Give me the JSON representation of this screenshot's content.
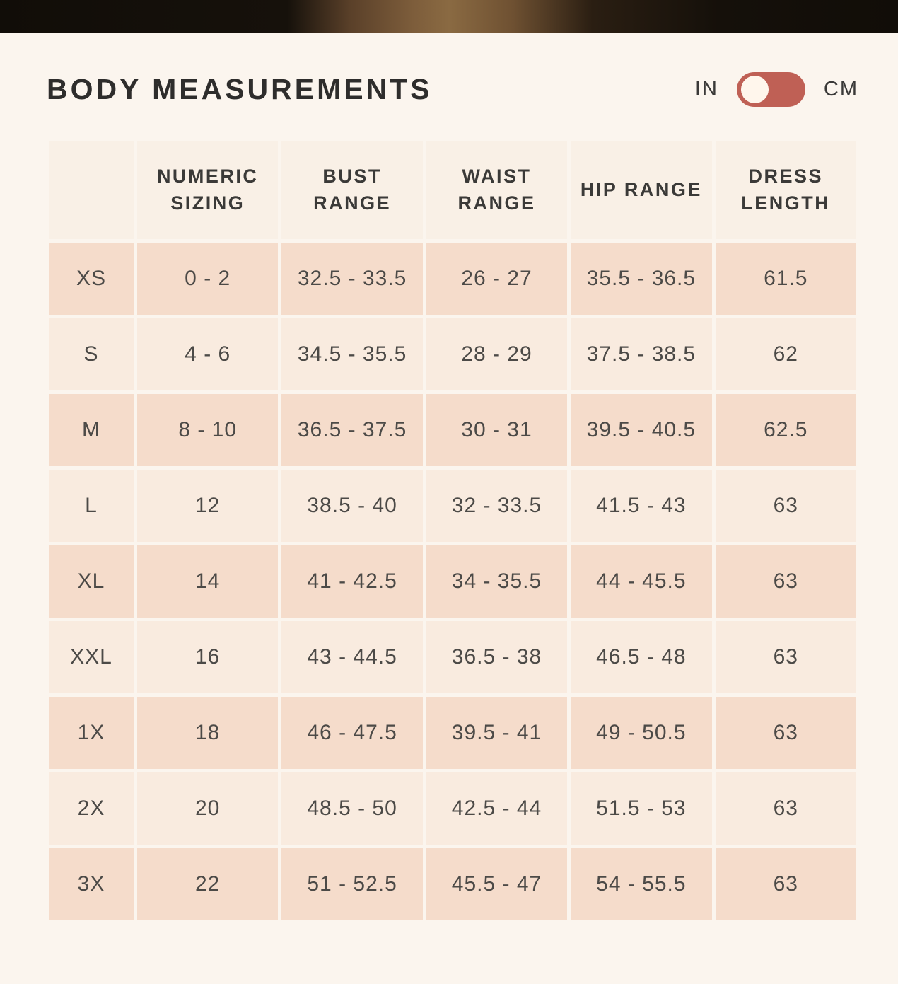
{
  "header": {
    "title": "BODY MEASUREMENTS",
    "unit_toggle": {
      "left_label": "IN",
      "right_label": "CM",
      "selected": "IN"
    }
  },
  "table": {
    "column_headers": [
      "",
      "NUMERIC SIZING",
      "BUST RANGE",
      "WAIST RANGE",
      "HIP RANGE",
      "DRESS LENGTH"
    ],
    "rows": [
      [
        "XS",
        "0 - 2",
        "32.5 - 33.5",
        "26 - 27",
        "35.5 - 36.5",
        "61.5"
      ],
      [
        "S",
        "4 - 6",
        "34.5 - 35.5",
        "28 - 29",
        "37.5 - 38.5",
        "62"
      ],
      [
        "M",
        "8 - 10",
        "36.5 - 37.5",
        "30 - 31",
        "39.5 - 40.5",
        "62.5"
      ],
      [
        "L",
        "12",
        "38.5 - 40",
        "32 - 33.5",
        "41.5 - 43",
        "63"
      ],
      [
        "XL",
        "14",
        "41 - 42.5",
        "34 - 35.5",
        "44 - 45.5",
        "63"
      ],
      [
        "XXL",
        "16",
        "43 - 44.5",
        "36.5 - 38",
        "46.5 - 48",
        "63"
      ],
      [
        "1X",
        "18",
        "46 - 47.5",
        "39.5 - 41",
        "49 - 50.5",
        "63"
      ],
      [
        "2X",
        "20",
        "48.5 - 50",
        "42.5 - 44",
        "51.5 - 53",
        "63"
      ],
      [
        "3X",
        "22",
        "51 - 52.5",
        "45.5 - 47",
        "54 - 55.5",
        "63"
      ]
    ]
  },
  "colors": {
    "page_background": "#fbf5ee",
    "accent_toggle": "#bf6055",
    "knob": "#fff6ec",
    "header_cell": "#f9f0e6",
    "row_dark": "#f5dccb",
    "row_light": "#f9ebdf"
  }
}
